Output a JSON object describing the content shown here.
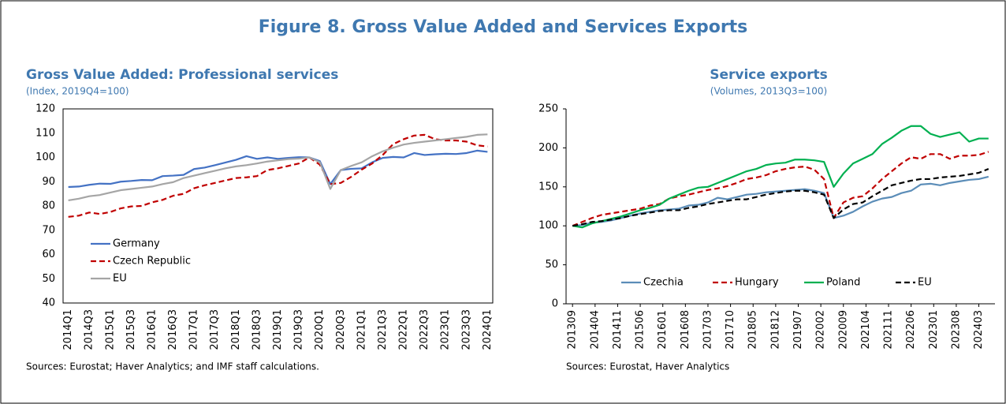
{
  "title": "Figure 8. Gross Value Added and Services Exports",
  "chart_data": [
    {
      "type": "line",
      "title": "Gross Value Added: Professional services",
      "subtitle": "(Index, 2019Q4=100)",
      "categories": [
        "2014Q1",
        null,
        "2014Q3",
        null,
        "2015Q1",
        null,
        "2015Q3",
        null,
        "2016Q1",
        null,
        "2016Q3",
        null,
        "2017Q1",
        null,
        "2017Q3",
        null,
        "2018Q1",
        null,
        "2018Q3",
        null,
        "2019Q1",
        null,
        "2019Q3",
        null,
        "2020Q1",
        null,
        "2020Q3",
        null,
        "2021Q1",
        null,
        "2021Q3",
        null,
        "2022Q1",
        null,
        "2022Q3",
        null,
        "2023Q1",
        null,
        "2023Q3",
        null,
        "2024Q1"
      ],
      "series": [
        {
          "name": "Germany",
          "color": "#4472c4",
          "linestyle": "solid",
          "values": [
            87.8,
            88,
            88.7,
            89.2,
            89.1,
            90,
            90.3,
            90.7,
            90.6,
            92.3,
            92.5,
            92.8,
            95.2,
            95.8,
            96.8,
            97.9,
            99,
            100.5,
            99.4,
            100,
            99.4,
            99.8,
            100.1,
            100,
            98.5,
            89,
            94.8,
            95.3,
            95.5,
            98,
            99.8,
            100.2,
            100,
            101.8,
            101,
            101.3,
            101.5,
            101.4,
            101.8,
            102.8,
            102.3
          ]
        },
        {
          "name": "Czech Republic",
          "color": "#c00000",
          "linestyle": "dashed",
          "values": [
            75.5,
            76,
            77.3,
            76.7,
            77.5,
            79,
            79.8,
            80,
            81.5,
            82.5,
            84.2,
            85,
            87.3,
            88.5,
            89.5,
            90.5,
            91.5,
            91.8,
            92.3,
            94.8,
            95.5,
            96.5,
            97.5,
            100,
            97,
            89,
            89.5,
            92,
            95,
            97.5,
            101,
            105.5,
            107.5,
            109,
            109.3,
            107.5,
            107,
            107,
            106.5,
            105,
            104.5
          ]
        },
        {
          "name": "EU",
          "color": "#a5a5a5",
          "linestyle": "solid",
          "values": [
            82.3,
            83,
            84,
            84.5,
            85.5,
            86.5,
            87,
            87.5,
            88,
            89,
            89.8,
            91.5,
            92.5,
            93.5,
            94.5,
            95.5,
            96.3,
            96.8,
            97.5,
            98.3,
            98.8,
            99.3,
            99.5,
            100,
            98,
            87,
            94.8,
            96.5,
            98,
            100.5,
            102.5,
            104,
            105.3,
            106,
            106.5,
            107,
            107.5,
            108,
            108.5,
            109.3,
            109.5
          ]
        }
      ],
      "ylim": [
        40,
        120
      ],
      "yticks": [
        40,
        50,
        60,
        70,
        80,
        90,
        100,
        110,
        120
      ],
      "grid": false,
      "legend": "lower left",
      "frame": true,
      "source": "Sources: Eurostat; Haver Analytics; and IMF staff calculations."
    },
    {
      "type": "line",
      "title": "Service exports",
      "subtitle": "(Volumes, 2013Q3=100)",
      "x": [
        "201309",
        "201312",
        "201403",
        "201406",
        "201409",
        "201412",
        "201503",
        "201506",
        "201509",
        "201512",
        "201603",
        "201606",
        "201609",
        "201612",
        "201703",
        "201706",
        "201709",
        "201712",
        "201803",
        "201806",
        "201809",
        "201812",
        "201903",
        "201906",
        "201909",
        "201912",
        "202003",
        "202006",
        "202009",
        "202012",
        "202103",
        "202106",
        "202109",
        "202112",
        "202203",
        "202206",
        "202209",
        "202212",
        "202303",
        "202306",
        "202309",
        "202312",
        "202403",
        "202406"
      ],
      "series": [
        {
          "name": "Czechia",
          "color": "#5b8db8",
          "linestyle": "solid",
          "values": [
            100,
            101,
            104,
            105,
            107,
            110,
            113,
            116,
            118,
            120,
            121,
            122,
            126,
            127,
            130,
            136,
            134,
            137,
            140,
            141,
            143,
            144,
            145,
            146,
            147,
            145,
            142,
            110,
            113,
            118,
            125,
            131,
            135,
            137,
            142,
            145,
            153,
            154,
            152,
            155,
            157,
            159,
            160,
            163
          ]
        },
        {
          "name": "Hungary",
          "color": "#c00000",
          "linestyle": "dashed",
          "values": [
            100,
            105,
            110,
            114,
            116,
            118,
            120,
            122,
            126,
            128,
            135,
            138,
            140,
            143,
            146,
            148,
            151,
            155,
            160,
            162,
            165,
            170,
            173,
            175,
            176,
            172,
            160,
            110,
            130,
            136,
            138,
            148,
            160,
            170,
            180,
            188,
            186,
            192,
            192,
            186,
            190,
            190,
            191,
            195
          ]
        },
        {
          "name": "Poland",
          "color": "#00b050",
          "linestyle": "solid",
          "values": [
            100,
            98,
            103,
            106,
            109,
            112,
            116,
            120,
            123,
            127,
            135,
            140,
            145,
            149,
            150,
            155,
            160,
            165,
            170,
            173,
            178,
            180,
            181,
            185,
            185,
            184,
            182,
            150,
            167,
            180,
            186,
            192,
            205,
            213,
            222,
            228,
            228,
            218,
            214,
            217,
            220,
            208,
            212,
            212
          ]
        },
        {
          "name": "EU",
          "color": "#000000",
          "linestyle": "dashed",
          "values": [
            100,
            102,
            105,
            106,
            108,
            110,
            113,
            115,
            117,
            119,
            120,
            120,
            123,
            125,
            128,
            130,
            132,
            134,
            134,
            137,
            140,
            142,
            144,
            145,
            145,
            143,
            140,
            110,
            121,
            128,
            130,
            138,
            145,
            152,
            155,
            158,
            160,
            160,
            162,
            163,
            164,
            166,
            168,
            173
          ]
        }
      ],
      "xlim": [
        "201307",
        "202408"
      ],
      "xticks": [
        "201309",
        "201404",
        "201411",
        "201506",
        "201601",
        "201608",
        "201703",
        "201710",
        "201805",
        "201812",
        "201907",
        "202002",
        "202009",
        "202104",
        "202111",
        "202206",
        "202301",
        "202308",
        "202403"
      ],
      "ylim": [
        0,
        250
      ],
      "yticks": [
        0,
        50,
        100,
        150,
        200,
        250
      ],
      "grid": false,
      "legend": "lower center",
      "frame": false,
      "source": "Sources: Eurostat, Haver Analytics"
    }
  ]
}
